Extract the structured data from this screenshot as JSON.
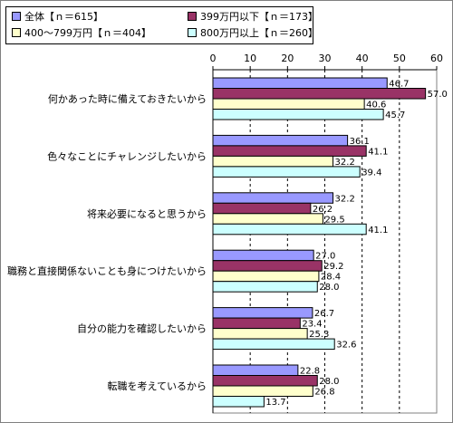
{
  "chart_data": {
    "type": "bar",
    "orientation": "horizontal",
    "categories": [
      "何かあった時に備えておきたいから",
      "色々なことにチャレンジしたいから",
      "将来必要になると思うから",
      "職務と直接関係ないことも身につけたいから",
      "自分の能力を確認したいから",
      "転職を考えているから"
    ],
    "series": [
      {
        "name": "全体【ｎ＝615】",
        "color": "#9999ff",
        "values": [
          46.7,
          36.1,
          32.2,
          27.0,
          26.7,
          22.8
        ]
      },
      {
        "name": "399万円以下【ｎ＝173】",
        "color": "#993366",
        "values": [
          57.0,
          41.1,
          26.2,
          29.2,
          23.4,
          28.0
        ]
      },
      {
        "name": "400～799万円【ｎ＝404】",
        "color": "#ffffcc",
        "values": [
          40.6,
          32.2,
          29.5,
          28.4,
          25.3,
          26.8
        ]
      },
      {
        "name": "800万円以上【ｎ＝260】",
        "color": "#ccffff",
        "values": [
          45.7,
          39.4,
          41.1,
          28.0,
          32.6,
          13.7
        ]
      }
    ],
    "x_ticks": [
      "0",
      "10",
      "20",
      "30",
      "40",
      "50",
      "60"
    ],
    "xlim": [
      0,
      60
    ],
    "grid": true,
    "legend_position": "top-left"
  }
}
